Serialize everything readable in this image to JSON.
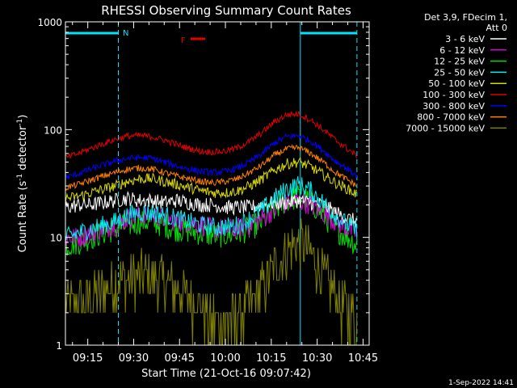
{
  "chart_data": {
    "type": "line",
    "title": "RHESSI Observing Summary Count Rates",
    "xlabel": "Start Time (21-Oct-16 09:07:42)",
    "ylabel": "Count Rate (s^-1 detector^-1)",
    "y_scale": "log",
    "ylim": [
      1,
      1000
    ],
    "xlim": [
      "09:07:42",
      "10:47:00"
    ],
    "x_ticks": [
      "09:15",
      "09:30",
      "09:45",
      "10:00",
      "10:15",
      "10:30",
      "10:45"
    ],
    "y_ticks": [
      "1",
      "10",
      "100",
      "1000"
    ],
    "legend_header": [
      "Det 3,9, FDecim 1,",
      "Att 0"
    ],
    "legend_position": "top-right outside",
    "grid": false,
    "markers": {
      "N_label": "N",
      "F_label": "F",
      "night_intervals": [
        [
          "09:07:42",
          "09:25:00"
        ],
        [
          "10:24:30",
          "10:43:00"
        ]
      ]
    },
    "x": [
      "09:08",
      "09:12",
      "09:16",
      "09:20",
      "09:24",
      "09:28",
      "09:32",
      "09:36",
      "09:40",
      "09:44",
      "09:48",
      "09:52",
      "09:56",
      "10:00",
      "10:04",
      "10:08",
      "10:12",
      "10:16",
      "10:20",
      "10:24",
      "10:28",
      "10:32",
      "10:36",
      "10:40",
      "10:43"
    ],
    "series": [
      {
        "name": "3 - 6 keV",
        "color": "#ffffff",
        "values": [
          19,
          20,
          20,
          21,
          22,
          23,
          22,
          22,
          21,
          22,
          21,
          20,
          20,
          19,
          19,
          19,
          20,
          21,
          21,
          22,
          21,
          20,
          17,
          15,
          14
        ]
      },
      {
        "name": "6 - 12 keV",
        "color": "#d200d2",
        "values": [
          10,
          10,
          11,
          12,
          13,
          15,
          16,
          16,
          15,
          14,
          14,
          13,
          12,
          12,
          12,
          13,
          15,
          18,
          21,
          22,
          20,
          17,
          14,
          12,
          11
        ]
      },
      {
        "name": "12 - 25 keV",
        "color": "#00e000",
        "values": [
          8.5,
          9,
          10,
          11,
          12,
          13,
          14,
          14,
          13,
          12,
          11.5,
          11,
          10.5,
          10.5,
          11,
          12,
          14,
          18,
          22,
          24,
          21,
          16,
          12,
          10,
          8.5
        ]
      },
      {
        "name": "25 - 50 keV",
        "color": "#00f0f0",
        "values": [
          10,
          11,
          12,
          13,
          14,
          16,
          17,
          17,
          16,
          15,
          14,
          13,
          12.5,
          12.5,
          13,
          15,
          18,
          23,
          28,
          31,
          27,
          21,
          16,
          13,
          11.5
        ]
      },
      {
        "name": "50 - 100 keV",
        "color": "#d8d800",
        "values": [
          23,
          24,
          26,
          28,
          30,
          33,
          35,
          35,
          33,
          31,
          29,
          27,
          26,
          26,
          27,
          30,
          35,
          42,
          48,
          50,
          45,
          38,
          32,
          28,
          25
        ]
      },
      {
        "name": "100 - 300 keV",
        "color": "#e00000",
        "values": [
          55,
          60,
          67,
          74,
          81,
          87,
          88,
          86,
          80,
          73,
          67,
          63,
          62,
          63,
          68,
          78,
          94,
          118,
          137,
          140,
          122,
          100,
          80,
          66,
          57
        ]
      },
      {
        "name": "300 - 800 keV",
        "color": "#0000ff",
        "values": [
          36,
          39,
          43,
          47,
          51,
          54,
          55,
          54,
          50,
          46,
          43,
          41,
          40,
          41,
          44,
          50,
          60,
          75,
          86,
          88,
          78,
          64,
          51,
          43,
          37
        ]
      },
      {
        "name": "800 - 7000 keV",
        "color": "#ff8000",
        "values": [
          29,
          31,
          34,
          37,
          40,
          43,
          44,
          43,
          40,
          37,
          35,
          33,
          32,
          33,
          35,
          40,
          47,
          58,
          66,
          68,
          60,
          50,
          40,
          34,
          30
        ]
      },
      {
        "name": "7000 - 15000 keV",
        "color": "#808000",
        "values": [
          2.2,
          2.4,
          2.8,
          3.2,
          3.8,
          4.2,
          4.4,
          4.3,
          3.9,
          3.3,
          2.7,
          2.2,
          1.8,
          1.6,
          1.7,
          2.3,
          3.3,
          5.2,
          7.5,
          9.0,
          7.0,
          4.5,
          2.8,
          2.0,
          1.6
        ]
      }
    ]
  },
  "footer": {
    "timestamp": "1-Sep-2022 14:41"
  }
}
